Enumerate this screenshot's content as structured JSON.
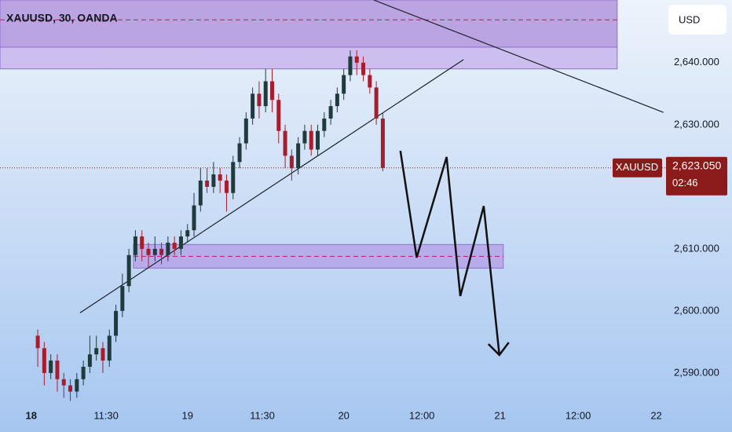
{
  "chart_data": {
    "type": "candlestick",
    "title": "XAUUSD, 30, OANDA",
    "currency": "USD",
    "symbol": "XAUUSD",
    "last_price": {
      "value": 2623.05,
      "label": "2,623.050"
    },
    "countdown": "02:46",
    "x": [
      1,
      2,
      3,
      4,
      5,
      6,
      7,
      8,
      9,
      10,
      11,
      12,
      13,
      14,
      15,
      16,
      17,
      18,
      19,
      20,
      21,
      22,
      23,
      24,
      25,
      26,
      27,
      28,
      29,
      30,
      31,
      32,
      33,
      34,
      35,
      36,
      37,
      38,
      39,
      40,
      41,
      42,
      43,
      44,
      45,
      46,
      47,
      48,
      49,
      50,
      51,
      52,
      53,
      54
    ],
    "open": [
      2596,
      2594,
      2590,
      2592,
      2589,
      2588,
      2587,
      2589,
      2591,
      2593,
      2594,
      2592,
      2596,
      2600,
      2604,
      2609,
      2612,
      2610,
      2609,
      2610,
      2609,
      2611,
      2610,
      2612,
      2613,
      2617,
      2621,
      2620,
      2622,
      2621,
      2619,
      2624,
      2627,
      2631,
      2635,
      2633,
      2637,
      2634,
      2629,
      2625,
      2623,
      2627,
      2629,
      2626,
      2629,
      2631,
      2633,
      2635,
      2638,
      2641,
      2640,
      2638,
      2636,
      2631
    ],
    "high": [
      2597,
      2595,
      2593,
      2593,
      2590,
      2589,
      2590,
      2592,
      2596,
      2596,
      2595,
      2597,
      2601,
      2606,
      2610,
      2613,
      2613,
      2611,
      2612,
      2611,
      2612,
      2612,
      2613,
      2614,
      2619,
      2623,
      2623,
      2624,
      2623,
      2622,
      2625,
      2628,
      2632,
      2636,
      2637,
      2639,
      2639,
      2635,
      2630,
      2626,
      2628,
      2630,
      2630,
      2630,
      2632,
      2634,
      2636,
      2639,
      2642,
      2642,
      2641,
      2639,
      2637,
      2632
    ],
    "low": [
      2591,
      2588,
      2589,
      2587,
      2586,
      2585.5,
      2586,
      2588,
      2590,
      2592,
      2590,
      2591,
      2595,
      2599,
      2603,
      2608,
      2608,
      2607,
      2608,
      2607.5,
      2608,
      2609,
      2609,
      2611,
      2612,
      2616,
      2619,
      2619,
      2619,
      2616,
      2618,
      2623,
      2626,
      2630,
      2631,
      2632,
      2632,
      2627,
      2623,
      2621,
      2622,
      2626,
      2625,
      2625,
      2628,
      2630,
      2632,
      2634,
      2637,
      2638,
      2637,
      2635,
      2630,
      2622.5
    ],
    "close": [
      2594,
      2590,
      2592,
      2589,
      2588,
      2587,
      2589,
      2591,
      2593,
      2594,
      2592,
      2596,
      2600,
      2604,
      2609,
      2612,
      2610,
      2609,
      2610,
      2609,
      2611,
      2610,
      2612,
      2613,
      2617,
      2621,
      2620,
      2622,
      2621,
      2619,
      2624,
      2627,
      2631,
      2635,
      2633,
      2637,
      2634,
      2629,
      2625,
      2623,
      2627,
      2629,
      2626,
      2629,
      2631,
      2633,
      2635,
      2638,
      2641,
      2640,
      2638,
      2636,
      2631,
      2623.05
    ],
    "up_color": "#1f3b3d",
    "down_color": "#a61e2e",
    "xlim": [
      -4.8,
      97.5
    ],
    "xticks": [
      {
        "value": 0,
        "label": "18"
      },
      {
        "value": 11.5,
        "label": "11:30"
      },
      {
        "value": 24,
        "label": "19"
      },
      {
        "value": 35.5,
        "label": "11:30"
      },
      {
        "value": 48,
        "label": "20"
      },
      {
        "value": 60,
        "label": "12:00"
      },
      {
        "value": 72,
        "label": "21"
      },
      {
        "value": 84,
        "label": "12:00"
      },
      {
        "value": 96,
        "label": "22"
      }
    ],
    "ylim": [
      2585.3,
      2650.1
    ],
    "yticks": [
      {
        "value": 2640,
        "label": "2,640.000"
      },
      {
        "value": 2630,
        "label": "2,630.000"
      },
      {
        "value": 2610,
        "label": "2,610.000"
      },
      {
        "value": 2600,
        "label": "2,600.000"
      },
      {
        "value": 2590,
        "label": "2,590.000"
      }
    ],
    "zones": [
      {
        "x": [
          -4.8,
          90
        ],
        "price": [
          2642.5,
          2650.1
        ],
        "mid": 2646.9,
        "color": "#a98ad8"
      },
      {
        "x": [
          -4.8,
          90
        ],
        "price": [
          2639,
          2642.5
        ],
        "color": "#c4aeea"
      },
      {
        "x": [
          15.7,
          72.5
        ],
        "price": [
          2606.9,
          2610.7
        ],
        "mid": 2608.8,
        "color": "#b49ce6"
      }
    ],
    "trendlines": [
      {
        "x": [
          7.5,
          66.4
        ],
        "price": [
          2599.7,
          2640.5
        ]
      },
      {
        "x": [
          52.6,
          97.1
        ],
        "price": [
          2650.1,
          2632.0
        ]
      }
    ],
    "projection": {
      "x": [
        56.7,
        59.2,
        63.8,
        65.9,
        69.5,
        71.9
      ],
      "price": [
        2625.8,
        2608.6,
        2624.8,
        2602.4,
        2616.9,
        2592.9
      ]
    }
  }
}
